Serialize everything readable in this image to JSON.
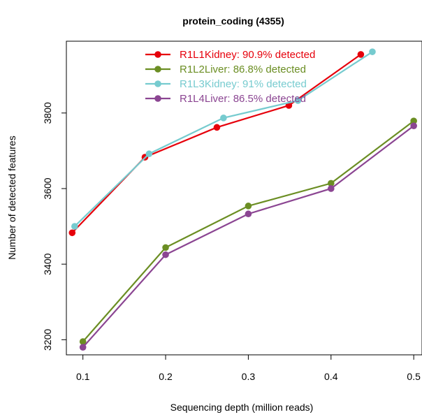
{
  "chart_data": {
    "type": "line",
    "title": "protein_coding (4355)",
    "xlabel": "Sequencing depth (million reads)",
    "ylabel": "Number of detected features",
    "xlim": [
      0.08,
      0.51
    ],
    "ylim": [
      3160,
      3990
    ],
    "xticks": [
      0.1,
      0.2,
      0.3,
      0.4,
      0.5
    ],
    "xtick_labels": [
      "0.1",
      "0.2",
      "0.3",
      "0.4",
      "0.5"
    ],
    "yticks": [
      3200,
      3400,
      3600,
      3800
    ],
    "ytick_labels": [
      "3200",
      "3400",
      "3600",
      "3800"
    ],
    "grid": false,
    "legend_position": "top-center",
    "series": [
      {
        "name": "R1L1Kidney: 90.9% detected",
        "color": "#e6000b",
        "x": [
          0.087,
          0.175,
          0.262,
          0.349,
          0.436
        ],
        "y": [
          3483,
          3683,
          3762,
          3820,
          3955
        ]
      },
      {
        "name": "R1L2Liver: 86.8% detected",
        "color": "#6b8e23",
        "x": [
          0.1,
          0.2,
          0.3,
          0.4,
          0.5
        ],
        "y": [
          3195,
          3444,
          3554,
          3614,
          3779
        ]
      },
      {
        "name": "R1L3Kidney: 91% detected",
        "color": "#76cbcf",
        "x": [
          0.09,
          0.18,
          0.27,
          0.36,
          0.45
        ],
        "y": [
          3500,
          3692,
          3787,
          3833,
          3962
        ]
      },
      {
        "name": "R1L4Liver: 86.5% detected",
        "color": "#8b4592",
        "x": [
          0.1,
          0.2,
          0.3,
          0.4,
          0.5
        ],
        "y": [
          3180,
          3425,
          3533,
          3600,
          3766
        ]
      }
    ]
  }
}
